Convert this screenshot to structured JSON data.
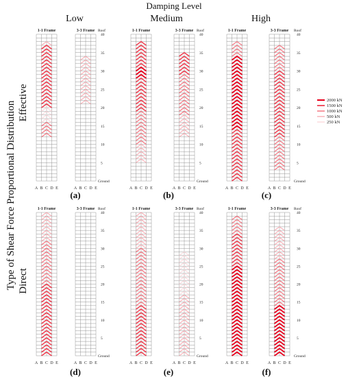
{
  "figure": {
    "damping_title": "Damping Level",
    "damping_levels": [
      "Low",
      "Medium",
      "High"
    ],
    "y_title": "Type of Shear Force Proportional Distribution",
    "row_labels": [
      "Effective",
      "Direct"
    ],
    "panel_letters": [
      "(a)",
      "(b)",
      "(c)",
      "(d)",
      "(e)",
      "(f)"
    ],
    "frame_labels": [
      "1-1 Frame",
      "3-3 Frame"
    ],
    "column_labels": [
      "A",
      "B",
      "C",
      "D",
      "E"
    ],
    "story_axis": {
      "top_label": "Roof",
      "bottom_label": "Ground",
      "ticks": [
        "40",
        "35",
        "30",
        "25",
        "20",
        "15",
        "10",
        "5"
      ]
    },
    "legend": [
      {
        "label": "2000 kN",
        "level": 2000,
        "color": "#e8001c"
      },
      {
        "label": "1500 kN",
        "level": 1500,
        "color": "#ee3a4c"
      },
      {
        "label": "1000 kN",
        "level": 1000,
        "color": "#f2707c"
      },
      {
        "label": "500 kN",
        "level": 500,
        "color": "#f6a3ab"
      },
      {
        "label": "250 kN",
        "level": 250,
        "color": "#fad0d4"
      }
    ]
  },
  "chart_data": {
    "type": "heatmap",
    "note_panels": [
      "a: Effective/Low",
      "b: Effective/Medium",
      "c: Effective/High",
      "d: Direct/Low",
      "e: Direct/Medium",
      "f: Direct/High"
    ],
    "stories": 40,
    "braced_bays": [
      "B-C",
      "C-D"
    ],
    "panels": {
      "a": {
        "1-1 Frame": [
          {
            "stories": [
              1,
              12
            ],
            "level": 0
          },
          {
            "stories": [
              13,
              16
            ],
            "level": 1000
          },
          {
            "stories": [
              17,
              20
            ],
            "level": 250
          },
          {
            "stories": [
              21,
              37
            ],
            "level": 1500
          },
          {
            "stories": [
              38,
              38
            ],
            "level": 500
          }
        ],
        "3-3 Frame": [
          {
            "stories": [
              22,
              24
            ],
            "level": 500
          },
          {
            "stories": [
              25,
              34
            ],
            "level": 500
          }
        ]
      },
      "b": {
        "1-1 Frame": [
          {
            "stories": [
              6,
              10
            ],
            "level": 500
          },
          {
            "stories": [
              11,
              19
            ],
            "level": 1000
          },
          {
            "stories": [
              20,
              28
            ],
            "level": 1500
          },
          {
            "stories": [
              29,
              31
            ],
            "level": 2000
          },
          {
            "stories": [
              32,
              38
            ],
            "level": 1500
          }
        ],
        "3-3 Frame": [
          {
            "stories": [
              13,
              18
            ],
            "level": 500
          },
          {
            "stories": [
              19,
              29
            ],
            "level": 1000
          },
          {
            "stories": [
              30,
              35
            ],
            "level": 1500
          }
        ]
      },
      "c": {
        "1-1 Frame": [
          {
            "stories": [
              1,
              14
            ],
            "level": 1500
          },
          {
            "stories": [
              15,
              34
            ],
            "level": 2000
          },
          {
            "stories": [
              35,
              38
            ],
            "level": 1000
          }
        ],
        "3-3 Frame": [
          {
            "stories": [
              4,
              12
            ],
            "level": 1000
          },
          {
            "stories": [
              13,
              30
            ],
            "level": 1500
          },
          {
            "stories": [
              31,
              37
            ],
            "level": 1000
          }
        ]
      },
      "d": {
        "1-1 Frame": [
          {
            "stories": [
              1,
              20
            ],
            "level": 1500
          },
          {
            "stories": [
              21,
              32
            ],
            "level": 1000
          },
          {
            "stories": [
              33,
              40
            ],
            "level": 500
          }
        ],
        "3-3 Frame": []
      },
      "e": {
        "1-1 Frame": [
          {
            "stories": [
              1,
              14
            ],
            "level": 1500
          },
          {
            "stories": [
              15,
              30
            ],
            "level": 1000
          },
          {
            "stories": [
              31,
              40
            ],
            "level": 500
          }
        ],
        "3-3 Frame": [
          {
            "stories": [
              1,
              17
            ],
            "level": 500
          },
          {
            "stories": [
              18,
              29
            ],
            "level": 250
          }
        ]
      },
      "f": {
        "1-1 Frame": [
          {
            "stories": [
              1,
              25
            ],
            "level": 2000
          },
          {
            "stories": [
              26,
              34
            ],
            "level": 1500
          },
          {
            "stories": [
              35,
              39
            ],
            "level": 1000
          }
        ],
        "3-3 Frame": [
          {
            "stories": [
              1,
              14
            ],
            "level": 2000
          },
          {
            "stories": [
              15,
              27
            ],
            "level": 1000
          },
          {
            "stories": [
              28,
              36
            ],
            "level": 500
          }
        ]
      }
    }
  }
}
